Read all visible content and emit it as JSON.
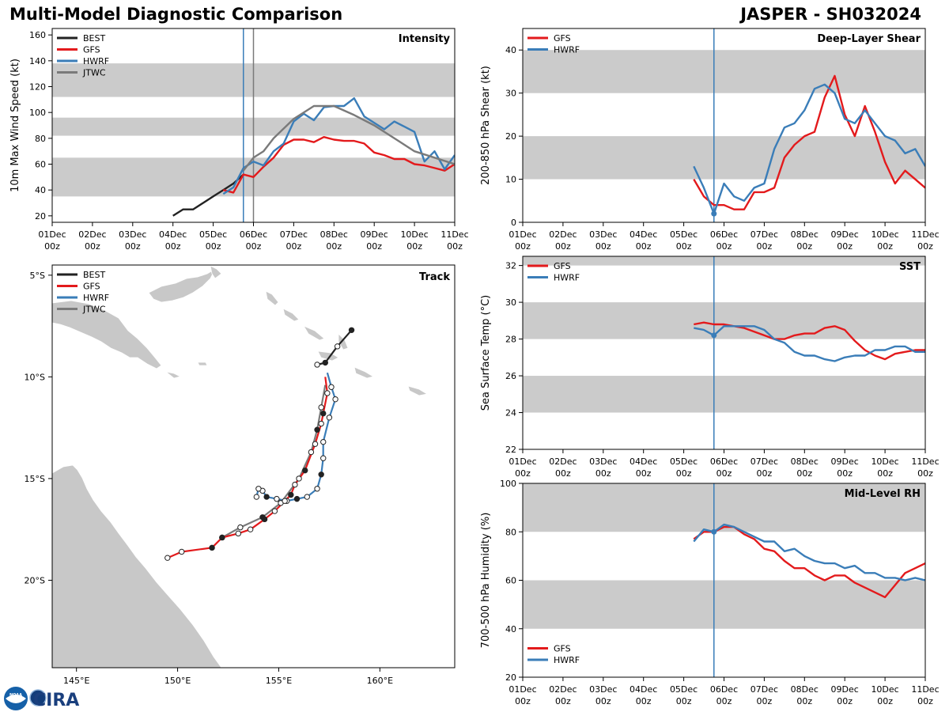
{
  "header": {
    "left_title": "Multi-Model Diagnostic Comparison",
    "right_title": "JASPER - SH032024"
  },
  "colors": {
    "BEST": "#222222",
    "GFS": "#e31a1c",
    "HWRF": "#3a7db8",
    "JTWC": "#7a7a7a",
    "band": "#cbcbcb",
    "land": "#c8c8c8",
    "current_line": "#3a7db8"
  },
  "time_axis": {
    "ticks": [
      "01Dec",
      "02Dec",
      "03Dec",
      "04Dec",
      "05Dec",
      "06Dec",
      "07Dec",
      "08Dec",
      "09Dec",
      "10Dec",
      "11Dec"
    ],
    "sub": "00z",
    "current_day": 4.75
  },
  "chart_data": [
    {
      "type": "line",
      "name": "intensity",
      "title": "Intensity",
      "ylabel": "10m Max Wind Speed (kt)",
      "ylim": [
        15,
        165
      ],
      "yticks": [
        20,
        40,
        60,
        80,
        100,
        120,
        140,
        160
      ],
      "xlim": [
        0,
        10
      ],
      "bands": [
        [
          35,
          65
        ],
        [
          82,
          96
        ],
        [
          112,
          138
        ]
      ],
      "vlines": [
        {
          "x": 4.75,
          "color": "HWRF"
        },
        {
          "x": 5.0,
          "color": "JTWC"
        }
      ],
      "legend": [
        "BEST",
        "GFS",
        "HWRF",
        "JTWC"
      ],
      "legend_position": "top-left",
      "series": [
        {
          "name": "BEST",
          "x": [
            3.0,
            3.25,
            3.5,
            3.75,
            4.0,
            4.25,
            4.5,
            4.75
          ],
          "y": [
            20,
            25,
            25,
            30,
            35,
            40,
            45,
            52
          ]
        },
        {
          "name": "GFS",
          "x": [
            4.25,
            4.5,
            4.75,
            5.0,
            5.25,
            5.5,
            5.75,
            6.0,
            6.25,
            6.5,
            6.75,
            7.0,
            7.25,
            7.5,
            7.75,
            8.0,
            8.25,
            8.5,
            8.75,
            9.0,
            9.25,
            9.5,
            9.75,
            10.0
          ],
          "y": [
            40,
            38,
            52,
            50,
            58,
            65,
            75,
            79,
            79,
            77,
            81,
            79,
            78,
            78,
            76,
            69,
            67,
            64,
            64,
            60,
            59,
            57,
            55,
            60
          ]
        },
        {
          "name": "HWRF",
          "x": [
            4.25,
            4.5,
            4.75,
            5.0,
            5.25,
            5.5,
            5.75,
            6.0,
            6.25,
            6.5,
            6.75,
            7.0,
            7.25,
            7.5,
            7.75,
            8.0,
            8.25,
            8.5,
            8.75,
            9.0,
            9.25,
            9.5,
            9.75,
            10.0
          ],
          "y": [
            37,
            42,
            57,
            62,
            59,
            70,
            76,
            93,
            99,
            94,
            104,
            105,
            105,
            111,
            97,
            92,
            87,
            93,
            89,
            85,
            62,
            70,
            56,
            67
          ]
        },
        {
          "name": "JTWC",
          "x": [
            4.75,
            5.0,
            5.25,
            5.5,
            6.0,
            6.5,
            7.0,
            7.5,
            8.0,
            8.5,
            9.0,
            9.5,
            10.0
          ],
          "y": [
            55,
            65,
            70,
            80,
            95,
            105,
            105,
            98,
            90,
            80,
            70,
            65,
            60
          ]
        }
      ]
    },
    {
      "type": "line",
      "name": "shear",
      "title": "Deep-Layer Shear",
      "ylabel": "200-850 hPa Shear (kt)",
      "ylim": [
        0,
        45
      ],
      "yticks": [
        0,
        10,
        20,
        30,
        40
      ],
      "xlim": [
        0,
        10
      ],
      "bands": [
        [
          10,
          20
        ],
        [
          30,
          40
        ]
      ],
      "vlines": [
        {
          "x": 4.75,
          "color": "HWRF"
        }
      ],
      "legend": [
        "GFS",
        "HWRF"
      ],
      "legend_position": "top-left",
      "marker": {
        "x": 4.75,
        "y": 2
      },
      "series": [
        {
          "name": "GFS",
          "x": [
            4.25,
            4.5,
            4.75,
            5.0,
            5.25,
            5.5,
            5.75,
            6.0,
            6.25,
            6.5,
            6.75,
            7.0,
            7.25,
            7.5,
            7.75,
            8.0,
            8.25,
            8.5,
            8.75,
            9.0,
            9.25,
            9.5,
            9.75,
            10.0
          ],
          "y": [
            10,
            6,
            4,
            4,
            3,
            3,
            7,
            7,
            8,
            15,
            18,
            20,
            21,
            29,
            34,
            25,
            20,
            27,
            21,
            14,
            9,
            12,
            10,
            8
          ]
        },
        {
          "name": "HWRF",
          "x": [
            4.25,
            4.5,
            4.75,
            5.0,
            5.25,
            5.5,
            5.75,
            6.0,
            6.25,
            6.5,
            6.75,
            7.0,
            7.25,
            7.5,
            7.75,
            8.0,
            8.25,
            8.5,
            8.75,
            9.0,
            9.25,
            9.5,
            9.75,
            10.0
          ],
          "y": [
            13,
            8,
            2,
            9,
            6,
            5,
            8,
            9,
            17,
            22,
            23,
            26,
            31,
            32,
            30,
            24,
            23,
            26,
            23,
            20,
            19,
            16,
            17,
            13
          ]
        }
      ]
    },
    {
      "type": "line",
      "name": "sst",
      "title": "SST",
      "ylabel": "Sea Surface Temp (°C)",
      "ylim": [
        22,
        32.5
      ],
      "yticks": [
        22,
        24,
        26,
        28,
        30,
        32
      ],
      "xlim": [
        0,
        10
      ],
      "bands": [
        [
          24,
          26
        ],
        [
          28,
          30
        ],
        [
          32,
          32.5
        ]
      ],
      "vlines": [
        {
          "x": 4.75,
          "color": "HWRF"
        }
      ],
      "legend": [
        "GFS",
        "HWRF"
      ],
      "legend_position": "top-left",
      "marker": {
        "x": 4.75,
        "y": 28.2
      },
      "series": [
        {
          "name": "GFS",
          "x": [
            4.25,
            4.5,
            4.75,
            5.0,
            5.25,
            5.5,
            5.75,
            6.0,
            6.25,
            6.5,
            6.75,
            7.0,
            7.25,
            7.5,
            7.75,
            8.0,
            8.25,
            8.5,
            8.75,
            9.0,
            9.25,
            9.5,
            9.75,
            10.0
          ],
          "y": [
            28.8,
            28.9,
            28.8,
            28.8,
            28.7,
            28.6,
            28.4,
            28.2,
            28.0,
            28.0,
            28.2,
            28.3,
            28.3,
            28.6,
            28.7,
            28.5,
            27.9,
            27.4,
            27.1,
            26.9,
            27.2,
            27.3,
            27.4,
            27.4
          ]
        },
        {
          "name": "HWRF",
          "x": [
            4.25,
            4.5,
            4.75,
            5.0,
            5.25,
            5.5,
            5.75,
            6.0,
            6.25,
            6.5,
            6.75,
            7.0,
            7.25,
            7.5,
            7.75,
            8.0,
            8.25,
            8.5,
            8.75,
            9.0,
            9.25,
            9.5,
            9.75,
            10.0
          ],
          "y": [
            28.6,
            28.5,
            28.2,
            28.7,
            28.7,
            28.7,
            28.7,
            28.5,
            28.0,
            27.8,
            27.3,
            27.1,
            27.1,
            26.9,
            26.8,
            27.0,
            27.1,
            27.1,
            27.4,
            27.4,
            27.6,
            27.6,
            27.3,
            27.3
          ]
        }
      ]
    },
    {
      "type": "line",
      "name": "rh",
      "title": "Mid-Level RH",
      "ylabel": "700-500 hPa Humidity (%)",
      "ylim": [
        20,
        100
      ],
      "yticks": [
        20,
        40,
        60,
        80,
        100
      ],
      "xlim": [
        0,
        10
      ],
      "bands": [
        [
          40,
          60
        ],
        [
          80,
          100
        ]
      ],
      "vlines": [
        {
          "x": 4.75,
          "color": "HWRF"
        }
      ],
      "legend": [
        "GFS",
        "HWRF"
      ],
      "legend_position": "bottom-left",
      "marker": {
        "x": 4.75,
        "y": 80
      },
      "series": [
        {
          "name": "GFS",
          "x": [
            4.25,
            4.5,
            4.75,
            5.0,
            5.25,
            5.5,
            5.75,
            6.0,
            6.25,
            6.5,
            6.75,
            7.0,
            7.25,
            7.5,
            7.75,
            8.0,
            8.25,
            8.5,
            8.75,
            9.0,
            9.25,
            9.5,
            9.75,
            10.0
          ],
          "y": [
            77,
            80,
            80,
            82,
            82,
            79,
            77,
            73,
            72,
            68,
            65,
            65,
            62,
            60,
            62,
            62,
            59,
            57,
            55,
            53,
            58,
            63,
            65,
            67
          ]
        },
        {
          "name": "HWRF",
          "x": [
            4.25,
            4.5,
            4.75,
            5.0,
            5.25,
            5.5,
            5.75,
            6.0,
            6.25,
            6.5,
            6.75,
            7.0,
            7.25,
            7.5,
            7.75,
            8.0,
            8.25,
            8.5,
            8.75,
            9.0,
            9.25,
            9.5,
            9.75,
            10.0
          ],
          "y": [
            76,
            81,
            80,
            83,
            82,
            80,
            78,
            76,
            76,
            72,
            73,
            70,
            68,
            67,
            67,
            65,
            66,
            63,
            63,
            61,
            61,
            60,
            61,
            60
          ]
        }
      ]
    },
    {
      "type": "scatter",
      "name": "track",
      "title": "Track",
      "xlim": [
        143.8,
        163.7
      ],
      "ylim": [
        -24.3,
        -4.5
      ],
      "xticks": [
        {
          "v": 145,
          "label": "145°E"
        },
        {
          "v": 150,
          "label": "150°E"
        },
        {
          "v": 155,
          "label": "155°E"
        },
        {
          "v": 160,
          "label": "160°E"
        }
      ],
      "yticks": [
        {
          "v": -5,
          "label": "5°S"
        },
        {
          "v": -10,
          "label": "10°S"
        },
        {
          "v": -15,
          "label": "15°S"
        },
        {
          "v": -20,
          "label": "20°S"
        }
      ],
      "legend": [
        "BEST",
        "GFS",
        "HWRF",
        "JTWC"
      ],
      "legend_position": "top-left",
      "series": [
        {
          "name": "BEST",
          "lon": [
            158.6,
            157.9,
            157.3,
            156.9
          ],
          "lat": [
            -7.7,
            -8.5,
            -9.3,
            -9.4
          ],
          "filled": [
            true,
            false,
            true,
            false
          ]
        },
        {
          "name": "GFS",
          "lon": [
            157.3,
            157.4,
            157.2,
            157.1,
            156.8,
            156.3,
            155.8,
            155.6,
            155.3,
            154.8,
            154.3,
            153.6,
            153.0,
            152.2,
            151.7,
            150.2,
            149.5
          ],
          "lat": [
            -10.0,
            -10.8,
            -11.8,
            -12.3,
            -13.3,
            -14.6,
            -15.3,
            -15.8,
            -16.1,
            -16.6,
            -17.0,
            -17.5,
            -17.7,
            -17.9,
            -18.4,
            -18.6,
            -18.9
          ],
          "filled": [
            true,
            false,
            true,
            false,
            false,
            true,
            false,
            true,
            false,
            false,
            true,
            false,
            false,
            true,
            true,
            false,
            false
          ]
        },
        {
          "name": "HWRF",
          "lon": [
            157.4,
            157.6,
            157.8,
            157.5,
            157.2,
            157.2,
            157.1,
            156.9,
            156.4,
            155.9,
            155.4,
            154.9,
            154.4,
            154.2,
            154.0,
            153.9
          ],
          "lat": [
            -9.8,
            -10.5,
            -11.1,
            -12.0,
            -13.2,
            -14.0,
            -14.8,
            -15.5,
            -15.9,
            -16.0,
            -16.1,
            -16.0,
            -15.9,
            -15.6,
            -15.5,
            -15.9
          ],
          "filled": [
            true,
            false,
            false,
            false,
            false,
            false,
            true,
            false,
            false,
            true,
            false,
            false,
            true,
            false,
            false,
            false
          ]
        },
        {
          "name": "JTWC",
          "lon": [
            157.3,
            157.1,
            156.9,
            156.6,
            156.0,
            155.1,
            154.2,
            153.1,
            152.2
          ],
          "lat": [
            -10.4,
            -11.5,
            -12.6,
            -13.7,
            -15.0,
            -16.2,
            -16.9,
            -17.4,
            -17.9
          ],
          "filled": [
            false,
            false,
            true,
            false,
            false,
            false,
            true,
            false,
            true
          ]
        }
      ]
    }
  ],
  "logo": {
    "noaa": "NOAA",
    "cira": "CIRA"
  }
}
